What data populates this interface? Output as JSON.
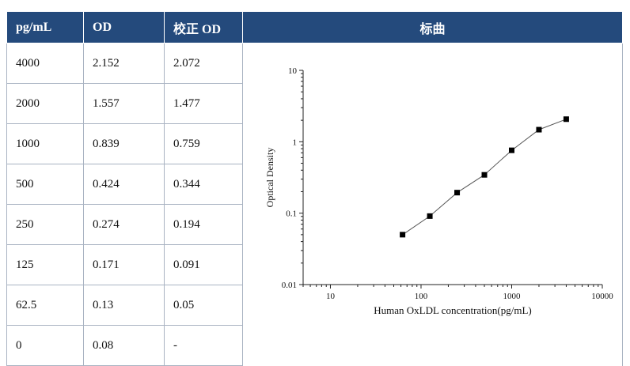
{
  "header": {
    "col_conc": "pg/mL",
    "col_od": "OD",
    "col_corrected": "校正 OD",
    "col_curve": "标曲"
  },
  "rows": [
    {
      "conc": "4000",
      "od": "2.152",
      "corrected": "2.072"
    },
    {
      "conc": "2000",
      "od": "1.557",
      "corrected": "1.477"
    },
    {
      "conc": "1000",
      "od": "0.839",
      "corrected": "0.759"
    },
    {
      "conc": "500",
      "od": "0.424",
      "corrected": "0.344"
    },
    {
      "conc": "250",
      "od": "0.274",
      "corrected": "0.194"
    },
    {
      "conc": "125",
      "od": "0.171",
      "corrected": "0.091"
    },
    {
      "conc": "62.5",
      "od": "0.13",
      "corrected": "0.05"
    },
    {
      "conc": "0",
      "od": "0.08",
      "corrected": "-"
    }
  ],
  "colors": {
    "header_bg": "#244a7c",
    "border": "#a9b3c2"
  },
  "chart_data": {
    "type": "scatter",
    "x_scale": "log",
    "y_scale": "log",
    "xlabel": "Human OxLDL concentration(pg/mL)",
    "ylabel": "Optical Density",
    "xlim": [
      5,
      10000
    ],
    "ylim": [
      0.01,
      10
    ],
    "x_ticks": [
      10,
      100,
      1000,
      10000
    ],
    "x_tick_labels": [
      "10",
      "100",
      "1000",
      "10000"
    ],
    "y_ticks": [
      0.01,
      0.1,
      1,
      10
    ],
    "y_tick_labels": [
      "0.01",
      "0.1",
      "1",
      "10"
    ],
    "series": [
      {
        "x": [
          62.5,
          125,
          250,
          500,
          1000,
          2000,
          4000
        ],
        "y": [
          0.05,
          0.091,
          0.194,
          0.344,
          0.759,
          1.477,
          2.072
        ],
        "marker": "square",
        "line": true
      }
    ],
    "grid": false
  }
}
